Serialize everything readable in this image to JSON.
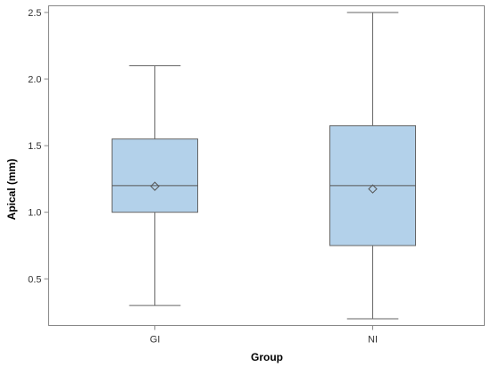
{
  "chart_data": {
    "type": "boxplot",
    "title": "",
    "xlabel": "Group",
    "ylabel": "Apical (mm)",
    "ylim": [
      0.15,
      2.55
    ],
    "yticks": [
      0.5,
      1.0,
      1.5,
      2.0,
      2.5
    ],
    "ytick_labels": [
      "0.5",
      "1.0",
      "1.5",
      "2.0",
      "2.5"
    ],
    "categories": [
      "GI",
      "NI"
    ],
    "box_color": "#b3d1ea",
    "series": [
      {
        "category": "GI",
        "min": 0.3,
        "q1": 1.0,
        "median": 1.2,
        "q3": 1.55,
        "max": 2.1,
        "mean": 1.195
      },
      {
        "category": "NI",
        "min": 0.2,
        "q1": 0.75,
        "median": 1.2,
        "q3": 1.65,
        "max": 2.5,
        "mean": 1.175
      }
    ],
    "grid": false
  }
}
